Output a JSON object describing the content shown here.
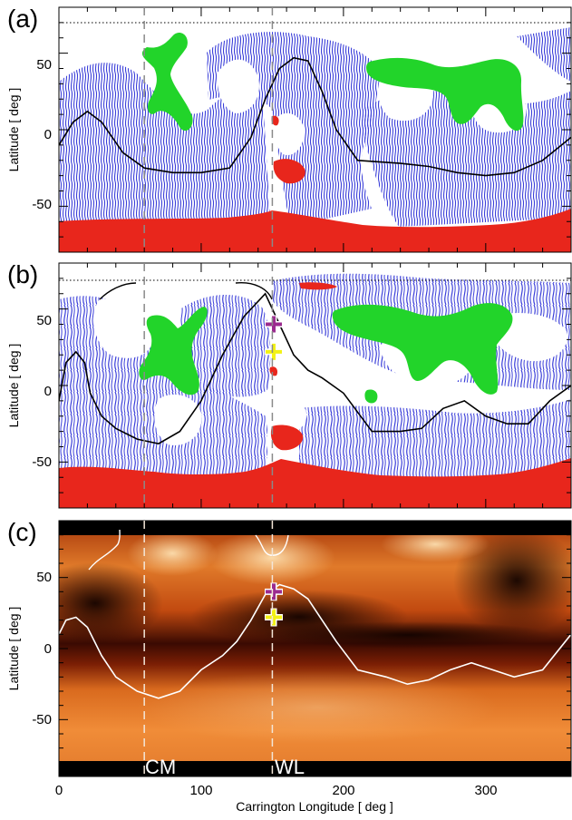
{
  "chart_data": {
    "type": "scatter",
    "xlabel": "Carrington Longitude  [ deg ]",
    "xlim": [
      0,
      360
    ],
    "x_ticks": [
      "0",
      "100",
      "200",
      "300"
    ],
    "markers": [
      {
        "label": "CM",
        "longitude": 60
      },
      {
        "label": "WL",
        "longitude": 150
      }
    ],
    "panels": [
      {
        "label": "(a)",
        "ylabel": "Latitude  [ deg ]",
        "ylim": [
          -80,
          80
        ],
        "y_ticks": [
          "50",
          "0",
          "-50"
        ],
        "neutral_line": {
          "lon": [
            0,
            10,
            20,
            30,
            45,
            60,
            80,
            100,
            120,
            135,
            145,
            155,
            165,
            175,
            185,
            195,
            210,
            240,
            260,
            280,
            300,
            320,
            340,
            360
          ],
          "lat": [
            -10,
            5,
            12,
            5,
            -15,
            -25,
            -28,
            -28,
            -25,
            -5,
            20,
            40,
            47,
            45,
            25,
            0,
            -20,
            -22,
            -24,
            -28,
            -30,
            -28,
            -20,
            -5
          ]
        },
        "crosses": []
      },
      {
        "label": "(b)",
        "ylabel": "Latitude  [ deg ]",
        "ylim": [
          -80,
          80
        ],
        "y_ticks": [
          "50",
          "0",
          "-50"
        ],
        "neutral_line": {
          "lon": [
            0,
            5,
            12,
            18,
            22,
            30,
            40,
            55,
            70,
            85,
            100,
            115,
            130,
            145,
            155,
            165,
            175,
            185,
            200,
            220,
            240,
            255,
            270,
            285,
            300,
            315,
            330,
            345,
            360
          ],
          "lat": [
            -10,
            15,
            22,
            15,
            -5,
            -20,
            -28,
            -35,
            -38,
            -30,
            -10,
            20,
            45,
            60,
            40,
            20,
            10,
            5,
            -5,
            -30,
            -30,
            -28,
            -15,
            -10,
            -20,
            -25,
            -25,
            -10,
            0
          ]
        },
        "crosses": [
          {
            "lon": 151,
            "lat": 40,
            "color": "#9b2b8f"
          },
          {
            "lon": 151,
            "lat": 22,
            "color": "#f2f214"
          }
        ]
      },
      {
        "label": "(c)",
        "ylabel": "Latitude  [ deg ]",
        "ylim": [
          -90,
          90
        ],
        "y_ticks": [
          "50",
          "0",
          "-50"
        ],
        "neutral_line": {
          "lon": [
            0,
            5,
            12,
            20,
            30,
            40,
            55,
            70,
            85,
            100,
            115,
            125,
            135,
            145,
            155,
            165,
            175,
            185,
            195,
            210,
            230,
            245,
            260,
            275,
            290,
            305,
            320,
            340,
            360
          ],
          "lat": [
            10,
            20,
            22,
            15,
            -5,
            -20,
            -30,
            -35,
            -30,
            -15,
            -5,
            5,
            20,
            38,
            45,
            42,
            35,
            20,
            5,
            -15,
            -20,
            -25,
            -22,
            -15,
            -10,
            -15,
            -20,
            -15,
            10
          ]
        },
        "crosses": [
          {
            "lon": 151,
            "lat": 40,
            "color": "#9b2b8f"
          },
          {
            "lon": 151,
            "lat": 22,
            "color": "#f2f214"
          }
        ]
      }
    ]
  },
  "colors": {
    "field_lines": "#3b3fd9",
    "open_negative": "#e8261c",
    "open_positive": "#22d42a",
    "neutral_line_ab": "#000000",
    "neutral_line_c": "#ffffff",
    "heatmap_dark": "#120300",
    "heatmap_mid": "#b8400a",
    "heatmap_bright": "#ffd9a0"
  }
}
